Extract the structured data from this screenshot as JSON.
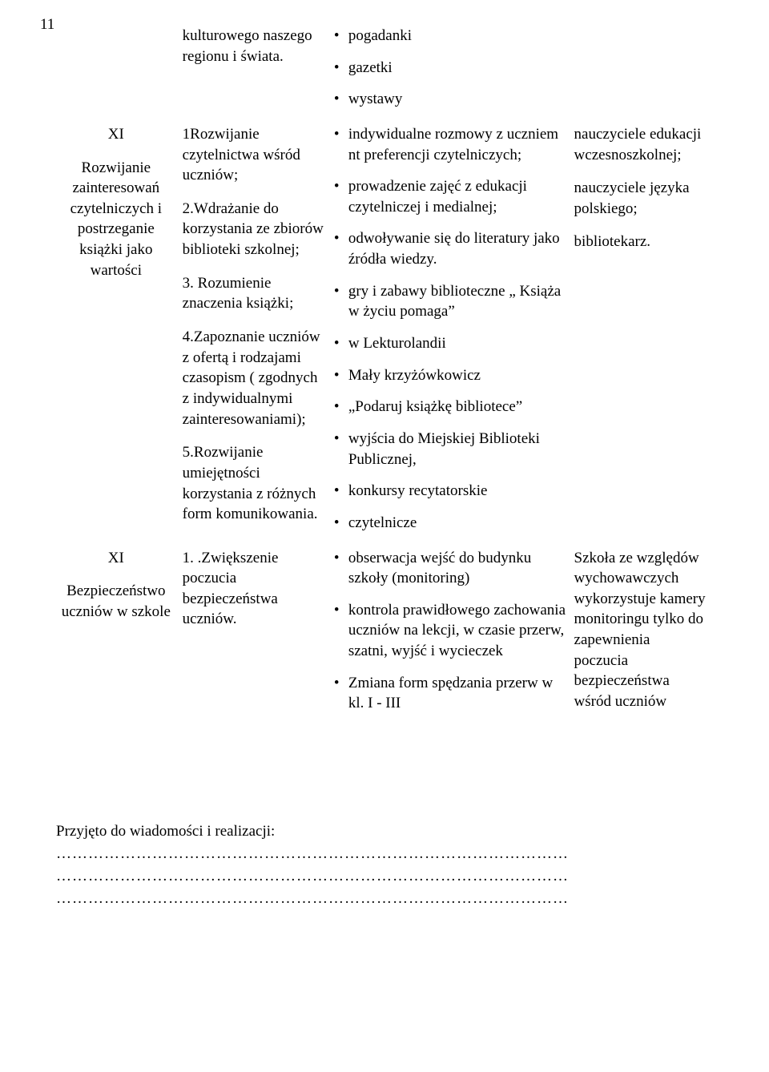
{
  "pageNumber": "11",
  "row0": {
    "col2": "kulturowego naszego regionu i świata.",
    "col3": [
      "pogadanki",
      "gazetki",
      "wystawy"
    ]
  },
  "row1": {
    "col1_num": "XI",
    "col1_text": "Rozwijanie zainteresowań czytelniczych i postrzeganie książki jako wartości",
    "col2": [
      "1Rozwijanie czytelnictwa wśród uczniów;",
      "2.Wdrażanie do korzystania ze zbiorów biblioteki szkolnej;",
      "3. Rozumienie znaczenia książki;",
      "4.Zapoznanie uczniów z ofertą i rodzajami czasopism ( zgodnych z indywidualnymi zainteresowaniami);",
      "5.Rozwijanie umiejętności korzystania z różnych form komunikowania."
    ],
    "col3": [
      "indywidualne rozmowy z uczniem nt preferencji czytelniczych;",
      "prowadzenie zajęć z edukacji czytelniczej i medialnej;",
      "odwoływanie się do literatury jako źródła  wiedzy.",
      "gry i zabawy biblioteczne „ Książa w życiu pomaga”",
      "w Lekturolandii",
      "Mały krzyżówkowicz",
      "„Podaruj książkę bibliotece”",
      "wyjścia do Miejskiej Biblioteki Publicznej,",
      "konkursy recytatorskie",
      "czytelnicze"
    ],
    "col4": [
      "nauczyciele edukacji wczesnoszkolnej;",
      "nauczyciele języka polskiego;",
      "bibliotekarz."
    ]
  },
  "row2": {
    "col1_num": "XI",
    "col1_text": "Bezpieczeństwo uczniów w szkole",
    "col2": "1. .Zwiększenie poczucia bezpieczeństwa uczniów.",
    "col3": [
      "obserwacja wejść do budynku szkoły (monitoring)",
      "kontrola prawidłowego zachowania uczniów na lekcji, w czasie przerw, szatni, wyjść i wycieczek",
      "Zmiana form spędzania przerw w kl. I - III"
    ],
    "col4": "Szkoła ze względów wychowawczych wykorzystuje kamery monitoringu tylko do zapewnienia poczucia bezpieczeństwa wśród uczniów"
  },
  "footer": "Przyjęto do wiadomości i realizacji:",
  "dots": "……………………………………………………………………………………"
}
